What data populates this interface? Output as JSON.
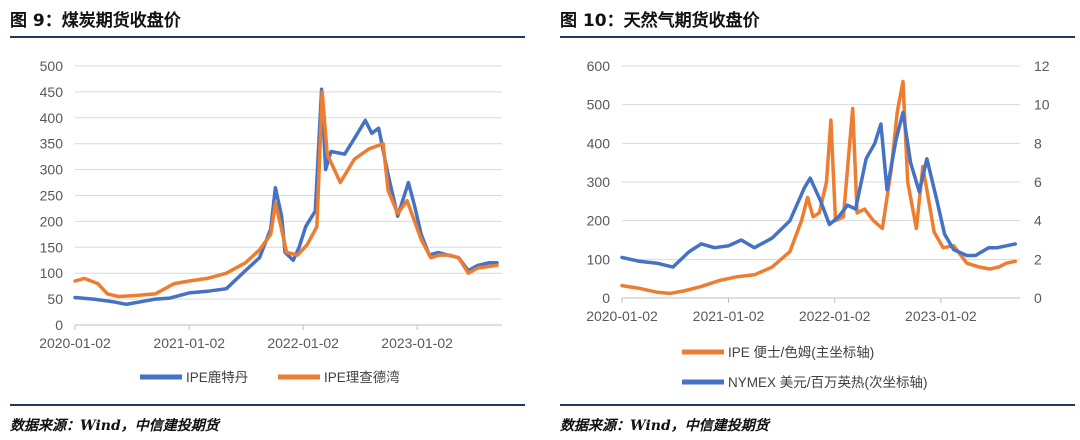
{
  "colors": {
    "blue": "#4472c4",
    "orange": "#ed7d31",
    "grid": "#d9d9d9",
    "rule": "#1f3864"
  },
  "panels": [
    {
      "title": "图 9：煤炭期货收盘价",
      "source": "数据来源：Wind，中信建投期货"
    },
    {
      "title": "图 10：天然气期货收盘价",
      "source": "数据来源：Wind，中信建投期货"
    }
  ],
  "chart_data": [
    {
      "type": "line",
      "title": "",
      "x_ticks": [
        "2020-01-02",
        "2021-01-02",
        "2022-01-02",
        "2023-01-02"
      ],
      "y_ticks": [
        "0",
        "50",
        "100",
        "150",
        "200",
        "250",
        "300",
        "350",
        "400",
        "450",
        "500"
      ],
      "ylim": [
        0,
        500
      ],
      "legend_position": "bottom",
      "grid": true,
      "series": [
        {
          "name": "IPE鹿特丹",
          "color": "#4472c4",
          "points": [
            [
              "2020-01-02",
              53
            ],
            [
              "2020-03-01",
              50
            ],
            [
              "2020-05-01",
              45
            ],
            [
              "2020-06-15",
              40
            ],
            [
              "2020-08-01",
              45
            ],
            [
              "2020-09-15",
              50
            ],
            [
              "2020-11-01",
              52
            ],
            [
              "2021-01-02",
              62
            ],
            [
              "2021-03-01",
              65
            ],
            [
              "2021-05-01",
              70
            ],
            [
              "2021-07-01",
              105
            ],
            [
              "2021-08-15",
              130
            ],
            [
              "2021-09-20",
              185
            ],
            [
              "2021-10-05",
              265
            ],
            [
              "2021-10-25",
              210
            ],
            [
              "2021-11-05",
              140
            ],
            [
              "2021-12-01",
              125
            ],
            [
              "2021-12-20",
              150
            ],
            [
              "2022-01-10",
              190
            ],
            [
              "2022-02-10",
              220
            ],
            [
              "2022-03-02",
              455
            ],
            [
              "2022-03-15",
              300
            ],
            [
              "2022-04-01",
              335
            ],
            [
              "2022-05-15",
              330
            ],
            [
              "2022-06-15",
              360
            ],
            [
              "2022-07-20",
              395
            ],
            [
              "2022-08-10",
              370
            ],
            [
              "2022-09-01",
              380
            ],
            [
              "2022-10-01",
              290
            ],
            [
              "2022-11-01",
              210
            ],
            [
              "2022-12-05",
              275
            ],
            [
              "2022-12-25",
              230
            ],
            [
              "2023-01-15",
              175
            ],
            [
              "2023-02-10",
              135
            ],
            [
              "2023-03-10",
              140
            ],
            [
              "2023-04-10",
              135
            ],
            [
              "2023-05-15",
              130
            ],
            [
              "2023-06-15",
              105
            ],
            [
              "2023-07-15",
              115
            ],
            [
              "2023-08-20",
              120
            ],
            [
              "2023-09-15",
              120
            ]
          ]
        },
        {
          "name": "IPE理查德湾",
          "color": "#ed7d31",
          "points": [
            [
              "2020-01-02",
              85
            ],
            [
              "2020-02-01",
              90
            ],
            [
              "2020-03-15",
              80
            ],
            [
              "2020-04-15",
              60
            ],
            [
              "2020-05-20",
              55
            ],
            [
              "2020-07-15",
              57
            ],
            [
              "2020-09-15",
              60
            ],
            [
              "2020-11-15",
              80
            ],
            [
              "2021-01-02",
              85
            ],
            [
              "2021-03-01",
              90
            ],
            [
              "2021-05-01",
              100
            ],
            [
              "2021-07-01",
              120
            ],
            [
              "2021-08-15",
              145
            ],
            [
              "2021-09-20",
              175
            ],
            [
              "2021-10-05",
              235
            ],
            [
              "2021-10-25",
              185
            ],
            [
              "2021-11-10",
              140
            ],
            [
              "2021-12-15",
              135
            ],
            [
              "2022-01-15",
              155
            ],
            [
              "2022-02-15",
              190
            ],
            [
              "2022-03-04",
              450
            ],
            [
              "2022-03-20",
              330
            ],
            [
              "2022-05-01",
              275
            ],
            [
              "2022-06-15",
              320
            ],
            [
              "2022-08-01",
              340
            ],
            [
              "2022-09-15",
              350
            ],
            [
              "2022-10-01",
              260
            ],
            [
              "2022-11-01",
              215
            ],
            [
              "2022-12-01",
              240
            ],
            [
              "2023-01-15",
              165
            ],
            [
              "2023-02-15",
              130
            ],
            [
              "2023-03-15",
              135
            ],
            [
              "2023-04-15",
              135
            ],
            [
              "2023-05-15",
              130
            ],
            [
              "2023-06-15",
              100
            ],
            [
              "2023-07-15",
              110
            ],
            [
              "2023-09-15",
              115
            ]
          ]
        }
      ]
    },
    {
      "type": "line",
      "title": "",
      "x_ticks": [
        "2020-01-02",
        "2021-01-02",
        "2022-01-02",
        "2023-01-02"
      ],
      "y_ticks": [
        "0",
        "100",
        "200",
        "300",
        "400",
        "500",
        "600"
      ],
      "y2_ticks": [
        "0",
        "2",
        "4",
        "6",
        "8",
        "10",
        "12"
      ],
      "ylim": [
        0,
        600
      ],
      "y2lim": [
        0,
        12
      ],
      "legend_position": "bottom",
      "grid": true,
      "series": [
        {
          "name": "IPE 便士/色姆(主坐标轴)",
          "color": "#ed7d31",
          "axis": "primary",
          "points": [
            [
              "2020-01-02",
              32
            ],
            [
              "2020-03-01",
              25
            ],
            [
              "2020-05-01",
              15
            ],
            [
              "2020-06-15",
              12
            ],
            [
              "2020-08-01",
              18
            ],
            [
              "2020-10-01",
              30
            ],
            [
              "2020-12-01",
              45
            ],
            [
              "2021-02-01",
              55
            ],
            [
              "2021-04-01",
              60
            ],
            [
              "2021-06-01",
              80
            ],
            [
              "2021-08-01",
              120
            ],
            [
              "2021-09-10",
              200
            ],
            [
              "2021-10-01",
              260
            ],
            [
              "2021-10-20",
              210
            ],
            [
              "2021-11-10",
              220
            ],
            [
              "2021-12-05",
              300
            ],
            [
              "2021-12-20",
              460
            ],
            [
              "2022-01-05",
              200
            ],
            [
              "2022-02-01",
              210
            ],
            [
              "2022-03-05",
              490
            ],
            [
              "2022-03-20",
              220
            ],
            [
              "2022-04-15",
              230
            ],
            [
              "2022-05-15",
              200
            ],
            [
              "2022-06-15",
              180
            ],
            [
              "2022-07-15",
              330
            ],
            [
              "2022-08-05",
              480
            ],
            [
              "2022-08-25",
              560
            ],
            [
              "2022-09-10",
              300
            ],
            [
              "2022-10-10",
              180
            ],
            [
              "2022-11-01",
              340
            ],
            [
              "2022-12-10",
              170
            ],
            [
              "2023-01-10",
              130
            ],
            [
              "2023-02-15",
              135
            ],
            [
              "2023-04-01",
              90
            ],
            [
              "2023-05-15",
              80
            ],
            [
              "2023-06-20",
              75
            ],
            [
              "2023-07-20",
              80
            ],
            [
              "2023-08-15",
              90
            ],
            [
              "2023-09-15",
              95
            ]
          ]
        },
        {
          "name": "NYMEX 美元/百万英热(次坐标轴)",
          "color": "#4472c4",
          "axis": "secondary",
          "points": [
            [
              "2020-01-02",
              2.1
            ],
            [
              "2020-03-01",
              1.9
            ],
            [
              "2020-05-01",
              1.8
            ],
            [
              "2020-06-25",
              1.6
            ],
            [
              "2020-08-20",
              2.4
            ],
            [
              "2020-10-01",
              2.8
            ],
            [
              "2020-11-15",
              2.6
            ],
            [
              "2021-01-02",
              2.7
            ],
            [
              "2021-02-15",
              3.0
            ],
            [
              "2021-04-01",
              2.6
            ],
            [
              "2021-06-01",
              3.1
            ],
            [
              "2021-08-01",
              4.0
            ],
            [
              "2021-09-20",
              5.7
            ],
            [
              "2021-10-10",
              6.2
            ],
            [
              "2021-11-15",
              5.0
            ],
            [
              "2021-12-15",
              3.8
            ],
            [
              "2022-01-15",
              4.2
            ],
            [
              "2022-02-15",
              4.8
            ],
            [
              "2022-03-15",
              4.6
            ],
            [
              "2022-04-20",
              7.2
            ],
            [
              "2022-05-20",
              8.0
            ],
            [
              "2022-06-10",
              9.0
            ],
            [
              "2022-07-01",
              5.6
            ],
            [
              "2022-08-01",
              8.2
            ],
            [
              "2022-08-25",
              9.6
            ],
            [
              "2022-09-20",
              7.0
            ],
            [
              "2022-10-20",
              5.5
            ],
            [
              "2022-11-15",
              7.2
            ],
            [
              "2022-12-20",
              5.0
            ],
            [
              "2023-01-15",
              3.3
            ],
            [
              "2023-02-15",
              2.5
            ],
            [
              "2023-04-01",
              2.2
            ],
            [
              "2023-05-01",
              2.2
            ],
            [
              "2023-06-15",
              2.6
            ],
            [
              "2023-07-15",
              2.6
            ],
            [
              "2023-08-15",
              2.7
            ],
            [
              "2023-09-15",
              2.8
            ]
          ]
        }
      ]
    }
  ]
}
